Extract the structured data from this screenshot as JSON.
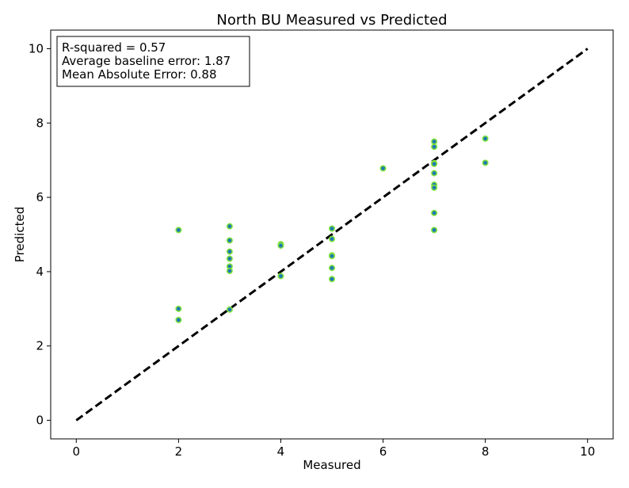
{
  "chart_data": {
    "type": "scatter",
    "title": "North BU Measured vs Predicted",
    "xlabel": "Measured",
    "ylabel": "Predicted",
    "xlim": [
      -0.5,
      10.5
    ],
    "ylim": [
      -0.5,
      10.5
    ],
    "xticks": [
      0,
      2,
      4,
      6,
      8,
      10
    ],
    "yticks": [
      0,
      2,
      4,
      6,
      8,
      10
    ],
    "grid": false,
    "annotation": [
      "R-squared = 0.57",
      "Average baseline error: 1.87",
      "Mean Absolute Error: 0.88"
    ],
    "annotation_location": "top-left",
    "reference_line": {
      "style": "dashed",
      "color": "#000000",
      "x": [
        0,
        10
      ],
      "y": [
        0,
        10
      ]
    },
    "series": [
      {
        "marker_fill": "#1f77b4",
        "marker_edge": "#7fe33c",
        "x": [
          2,
          2,
          2,
          3,
          3,
          3,
          3,
          3,
          3,
          3,
          4,
          4,
          4,
          5,
          5,
          5,
          5,
          5,
          5,
          6,
          7,
          7,
          7,
          7,
          7,
          7,
          7,
          7,
          7,
          8,
          8
        ],
        "y": [
          5.12,
          3.0,
          2.7,
          5.22,
          4.84,
          4.54,
          4.35,
          4.14,
          4.02,
          2.98,
          4.74,
          4.7,
          3.88,
          5.16,
          4.88,
          4.44,
          4.1,
          3.8,
          4.42,
          6.78,
          7.5,
          7.36,
          6.92,
          6.65,
          6.34,
          6.26,
          5.58,
          5.12,
          6.9,
          7.58,
          6.93
        ]
      }
    ]
  }
}
